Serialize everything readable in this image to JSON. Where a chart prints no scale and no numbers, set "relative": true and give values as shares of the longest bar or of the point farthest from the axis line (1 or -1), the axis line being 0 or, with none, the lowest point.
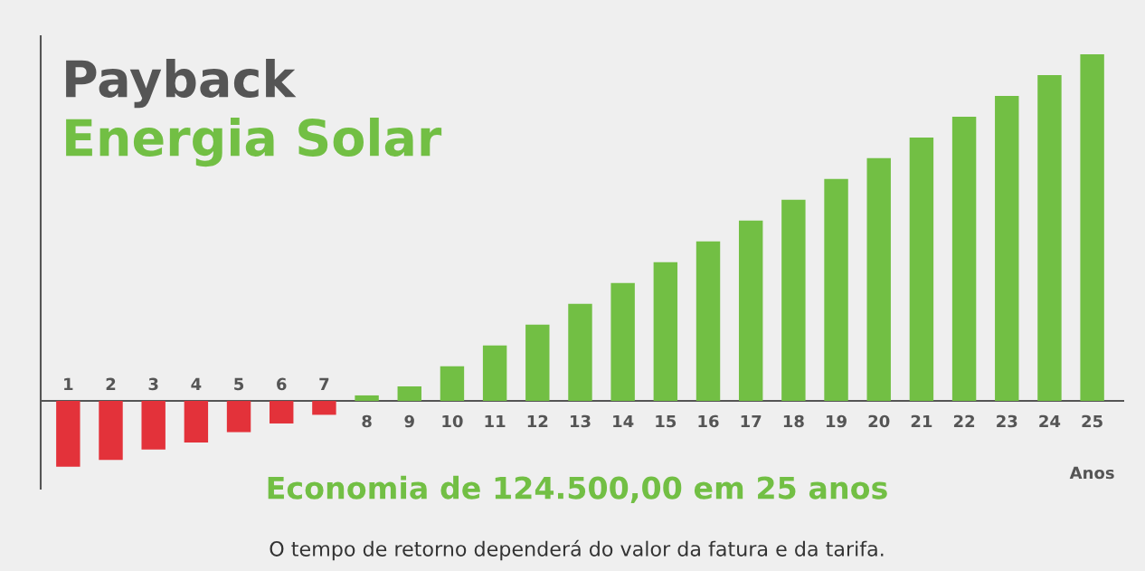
{
  "chart_data": {
    "type": "bar",
    "relative": true,
    "title": "Payback",
    "subtitle": "Energia Solar",
    "xlabel": "Anos",
    "categories": [
      "1",
      "2",
      "3",
      "4",
      "5",
      "6",
      "7",
      "8",
      "9",
      "10",
      "11",
      "12",
      "13",
      "14",
      "15",
      "16",
      "17",
      "18",
      "19",
      "20",
      "21",
      "22",
      "23",
      "24",
      "25"
    ],
    "values": [
      -0.19,
      -0.17,
      -0.14,
      -0.12,
      -0.09,
      -0.065,
      -0.04,
      0.016,
      0.042,
      0.1,
      0.16,
      0.22,
      0.28,
      0.34,
      0.4,
      0.46,
      0.52,
      0.58,
      0.64,
      0.7,
      0.76,
      0.82,
      0.88,
      0.94,
      1
    ],
    "colors": [
      "#e3323a",
      "#e3323a",
      "#e3323a",
      "#e3323a",
      "#e3323a",
      "#e3323a",
      "#e3323a",
      "#72bf44",
      "#72bf44",
      "#72bf44",
      "#72bf44",
      "#72bf44",
      "#72bf44",
      "#72bf44",
      "#72bf44",
      "#72bf44",
      "#72bf44",
      "#72bf44",
      "#72bf44",
      "#72bf44",
      "#72bf44",
      "#72bf44",
      "#72bf44",
      "#72bf44",
      "#72bf44"
    ],
    "annotations": [
      "Economia de 124.500,00 em 25 anos",
      "O tempo de retorno dependerá do valor da fatura e da tarifa."
    ]
  }
}
